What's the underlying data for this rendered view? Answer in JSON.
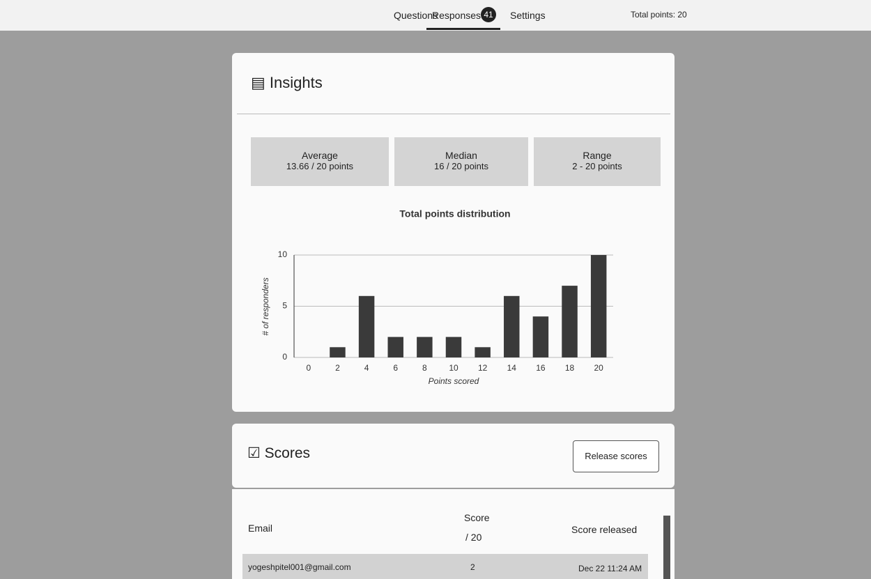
{
  "header": {
    "tabs": [
      "Questions",
      "Responses",
      "Settings"
    ],
    "response_count": 41,
    "total_points": "Total points: 20"
  },
  "insights": {
    "title": "Insights",
    "stats": [
      {
        "label": "Average",
        "value": "13.66 / 20 points"
      },
      {
        "label": "Median",
        "value": "16 / 20 points"
      },
      {
        "label": "Range",
        "value": "2 - 20 points"
      }
    ]
  },
  "chart_data": {
    "type": "bar",
    "title": "Total points distribution",
    "x_label": "Points scored",
    "y_label": "# of responders",
    "categories": [
      "0",
      "2",
      "4",
      "6",
      "8",
      "10",
      "12",
      "14",
      "16",
      "18",
      "20"
    ],
    "values": [
      0,
      1,
      6,
      2,
      2,
      2,
      1,
      6,
      4,
      7,
      10
    ],
    "color": "#3a3a3a",
    "ylim": [
      0,
      10
    ],
    "yticks": [
      0,
      5,
      10
    ],
    "grid": true
  },
  "scores": {
    "title": "Scores",
    "button": "Release scores",
    "columns": [
      "Email",
      "Score",
      "Score released"
    ],
    "score_max": "/ 20",
    "rows": [
      [
        "yogeshpitel001@gmail.com",
        "2",
        "Dec 22 11:24 AM"
      ]
    ]
  }
}
